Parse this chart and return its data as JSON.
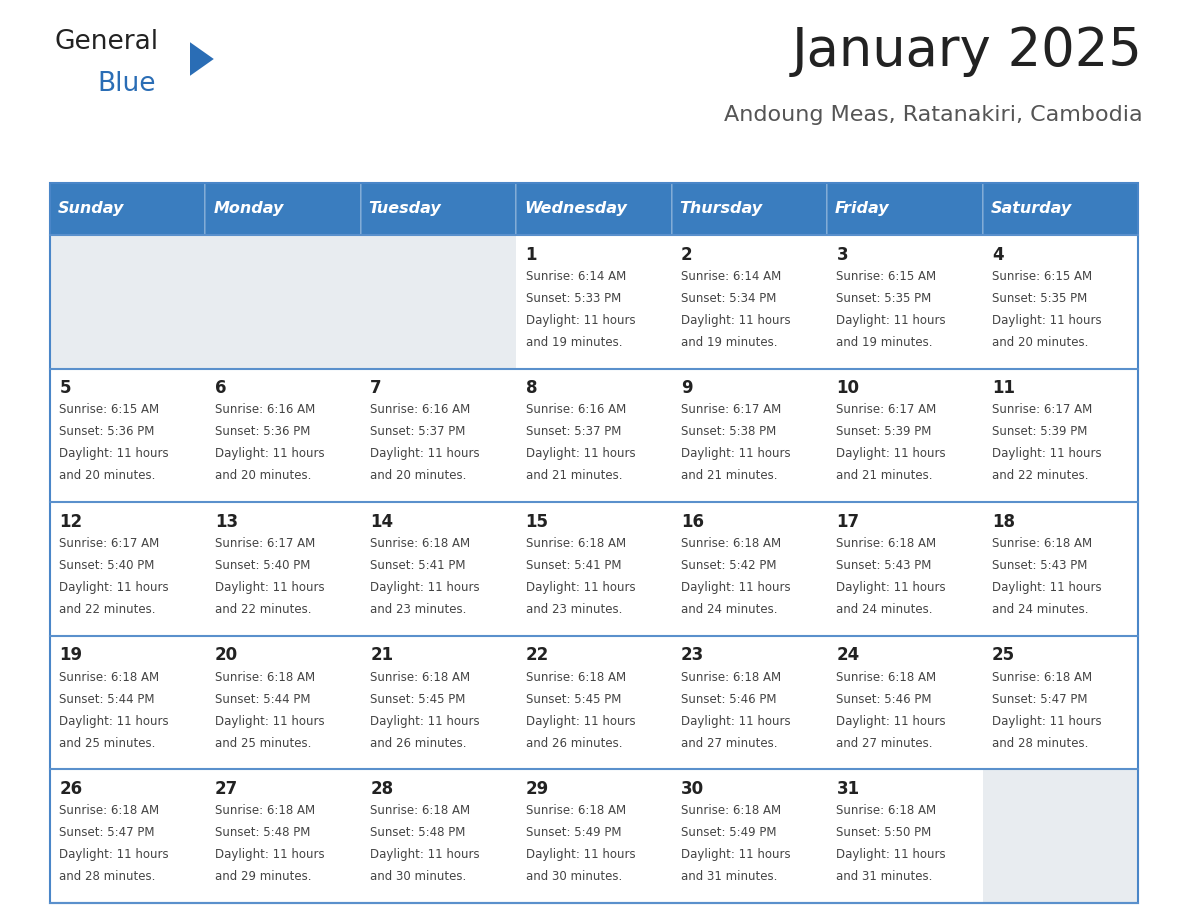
{
  "title": "January 2025",
  "subtitle": "Andoung Meas, Ratanakiri, Cambodia",
  "days_of_week": [
    "Sunday",
    "Monday",
    "Tuesday",
    "Wednesday",
    "Thursday",
    "Friday",
    "Saturday"
  ],
  "header_bg_color": "#3a7dbf",
  "header_text_color": "#ffffff",
  "cell_bg_white": "#ffffff",
  "cell_bg_gray": "#e8ecf0",
  "cell_bg_empty": "#e8ecf0",
  "border_color": "#4a86c8",
  "row_border_color": "#5a90cc",
  "title_color": "#222222",
  "subtitle_color": "#555555",
  "day_number_color": "#222222",
  "cell_text_color": "#444444",
  "logo_general_color": "#222222",
  "logo_blue_color": "#2a6db5",
  "logo_triangle_color": "#2a6db5",
  "calendar": [
    [
      null,
      null,
      null,
      {
        "day": 1,
        "sunrise": "6:14 AM",
        "sunset": "5:33 PM",
        "daylight": "11 hours and 19 minutes."
      },
      {
        "day": 2,
        "sunrise": "6:14 AM",
        "sunset": "5:34 PM",
        "daylight": "11 hours and 19 minutes."
      },
      {
        "day": 3,
        "sunrise": "6:15 AM",
        "sunset": "5:35 PM",
        "daylight": "11 hours and 19 minutes."
      },
      {
        "day": 4,
        "sunrise": "6:15 AM",
        "sunset": "5:35 PM",
        "daylight": "11 hours and 20 minutes."
      }
    ],
    [
      {
        "day": 5,
        "sunrise": "6:15 AM",
        "sunset": "5:36 PM",
        "daylight": "11 hours and 20 minutes."
      },
      {
        "day": 6,
        "sunrise": "6:16 AM",
        "sunset": "5:36 PM",
        "daylight": "11 hours and 20 minutes."
      },
      {
        "day": 7,
        "sunrise": "6:16 AM",
        "sunset": "5:37 PM",
        "daylight": "11 hours and 20 minutes."
      },
      {
        "day": 8,
        "sunrise": "6:16 AM",
        "sunset": "5:37 PM",
        "daylight": "11 hours and 21 minutes."
      },
      {
        "day": 9,
        "sunrise": "6:17 AM",
        "sunset": "5:38 PM",
        "daylight": "11 hours and 21 minutes."
      },
      {
        "day": 10,
        "sunrise": "6:17 AM",
        "sunset": "5:39 PM",
        "daylight": "11 hours and 21 minutes."
      },
      {
        "day": 11,
        "sunrise": "6:17 AM",
        "sunset": "5:39 PM",
        "daylight": "11 hours and 22 minutes."
      }
    ],
    [
      {
        "day": 12,
        "sunrise": "6:17 AM",
        "sunset": "5:40 PM",
        "daylight": "11 hours and 22 minutes."
      },
      {
        "day": 13,
        "sunrise": "6:17 AM",
        "sunset": "5:40 PM",
        "daylight": "11 hours and 22 minutes."
      },
      {
        "day": 14,
        "sunrise": "6:18 AM",
        "sunset": "5:41 PM",
        "daylight": "11 hours and 23 minutes."
      },
      {
        "day": 15,
        "sunrise": "6:18 AM",
        "sunset": "5:41 PM",
        "daylight": "11 hours and 23 minutes."
      },
      {
        "day": 16,
        "sunrise": "6:18 AM",
        "sunset": "5:42 PM",
        "daylight": "11 hours and 24 minutes."
      },
      {
        "day": 17,
        "sunrise": "6:18 AM",
        "sunset": "5:43 PM",
        "daylight": "11 hours and 24 minutes."
      },
      {
        "day": 18,
        "sunrise": "6:18 AM",
        "sunset": "5:43 PM",
        "daylight": "11 hours and 24 minutes."
      }
    ],
    [
      {
        "day": 19,
        "sunrise": "6:18 AM",
        "sunset": "5:44 PM",
        "daylight": "11 hours and 25 minutes."
      },
      {
        "day": 20,
        "sunrise": "6:18 AM",
        "sunset": "5:44 PM",
        "daylight": "11 hours and 25 minutes."
      },
      {
        "day": 21,
        "sunrise": "6:18 AM",
        "sunset": "5:45 PM",
        "daylight": "11 hours and 26 minutes."
      },
      {
        "day": 22,
        "sunrise": "6:18 AM",
        "sunset": "5:45 PM",
        "daylight": "11 hours and 26 minutes."
      },
      {
        "day": 23,
        "sunrise": "6:18 AM",
        "sunset": "5:46 PM",
        "daylight": "11 hours and 27 minutes."
      },
      {
        "day": 24,
        "sunrise": "6:18 AM",
        "sunset": "5:46 PM",
        "daylight": "11 hours and 27 minutes."
      },
      {
        "day": 25,
        "sunrise": "6:18 AM",
        "sunset": "5:47 PM",
        "daylight": "11 hours and 28 minutes."
      }
    ],
    [
      {
        "day": 26,
        "sunrise": "6:18 AM",
        "sunset": "5:47 PM",
        "daylight": "11 hours and 28 minutes."
      },
      {
        "day": 27,
        "sunrise": "6:18 AM",
        "sunset": "5:48 PM",
        "daylight": "11 hours and 29 minutes."
      },
      {
        "day": 28,
        "sunrise": "6:18 AM",
        "sunset": "5:48 PM",
        "daylight": "11 hours and 30 minutes."
      },
      {
        "day": 29,
        "sunrise": "6:18 AM",
        "sunset": "5:49 PM",
        "daylight": "11 hours and 30 minutes."
      },
      {
        "day": 30,
        "sunrise": "6:18 AM",
        "sunset": "5:49 PM",
        "daylight": "11 hours and 31 minutes."
      },
      {
        "day": 31,
        "sunrise": "6:18 AM",
        "sunset": "5:50 PM",
        "daylight": "11 hours and 31 minutes."
      },
      null
    ]
  ]
}
